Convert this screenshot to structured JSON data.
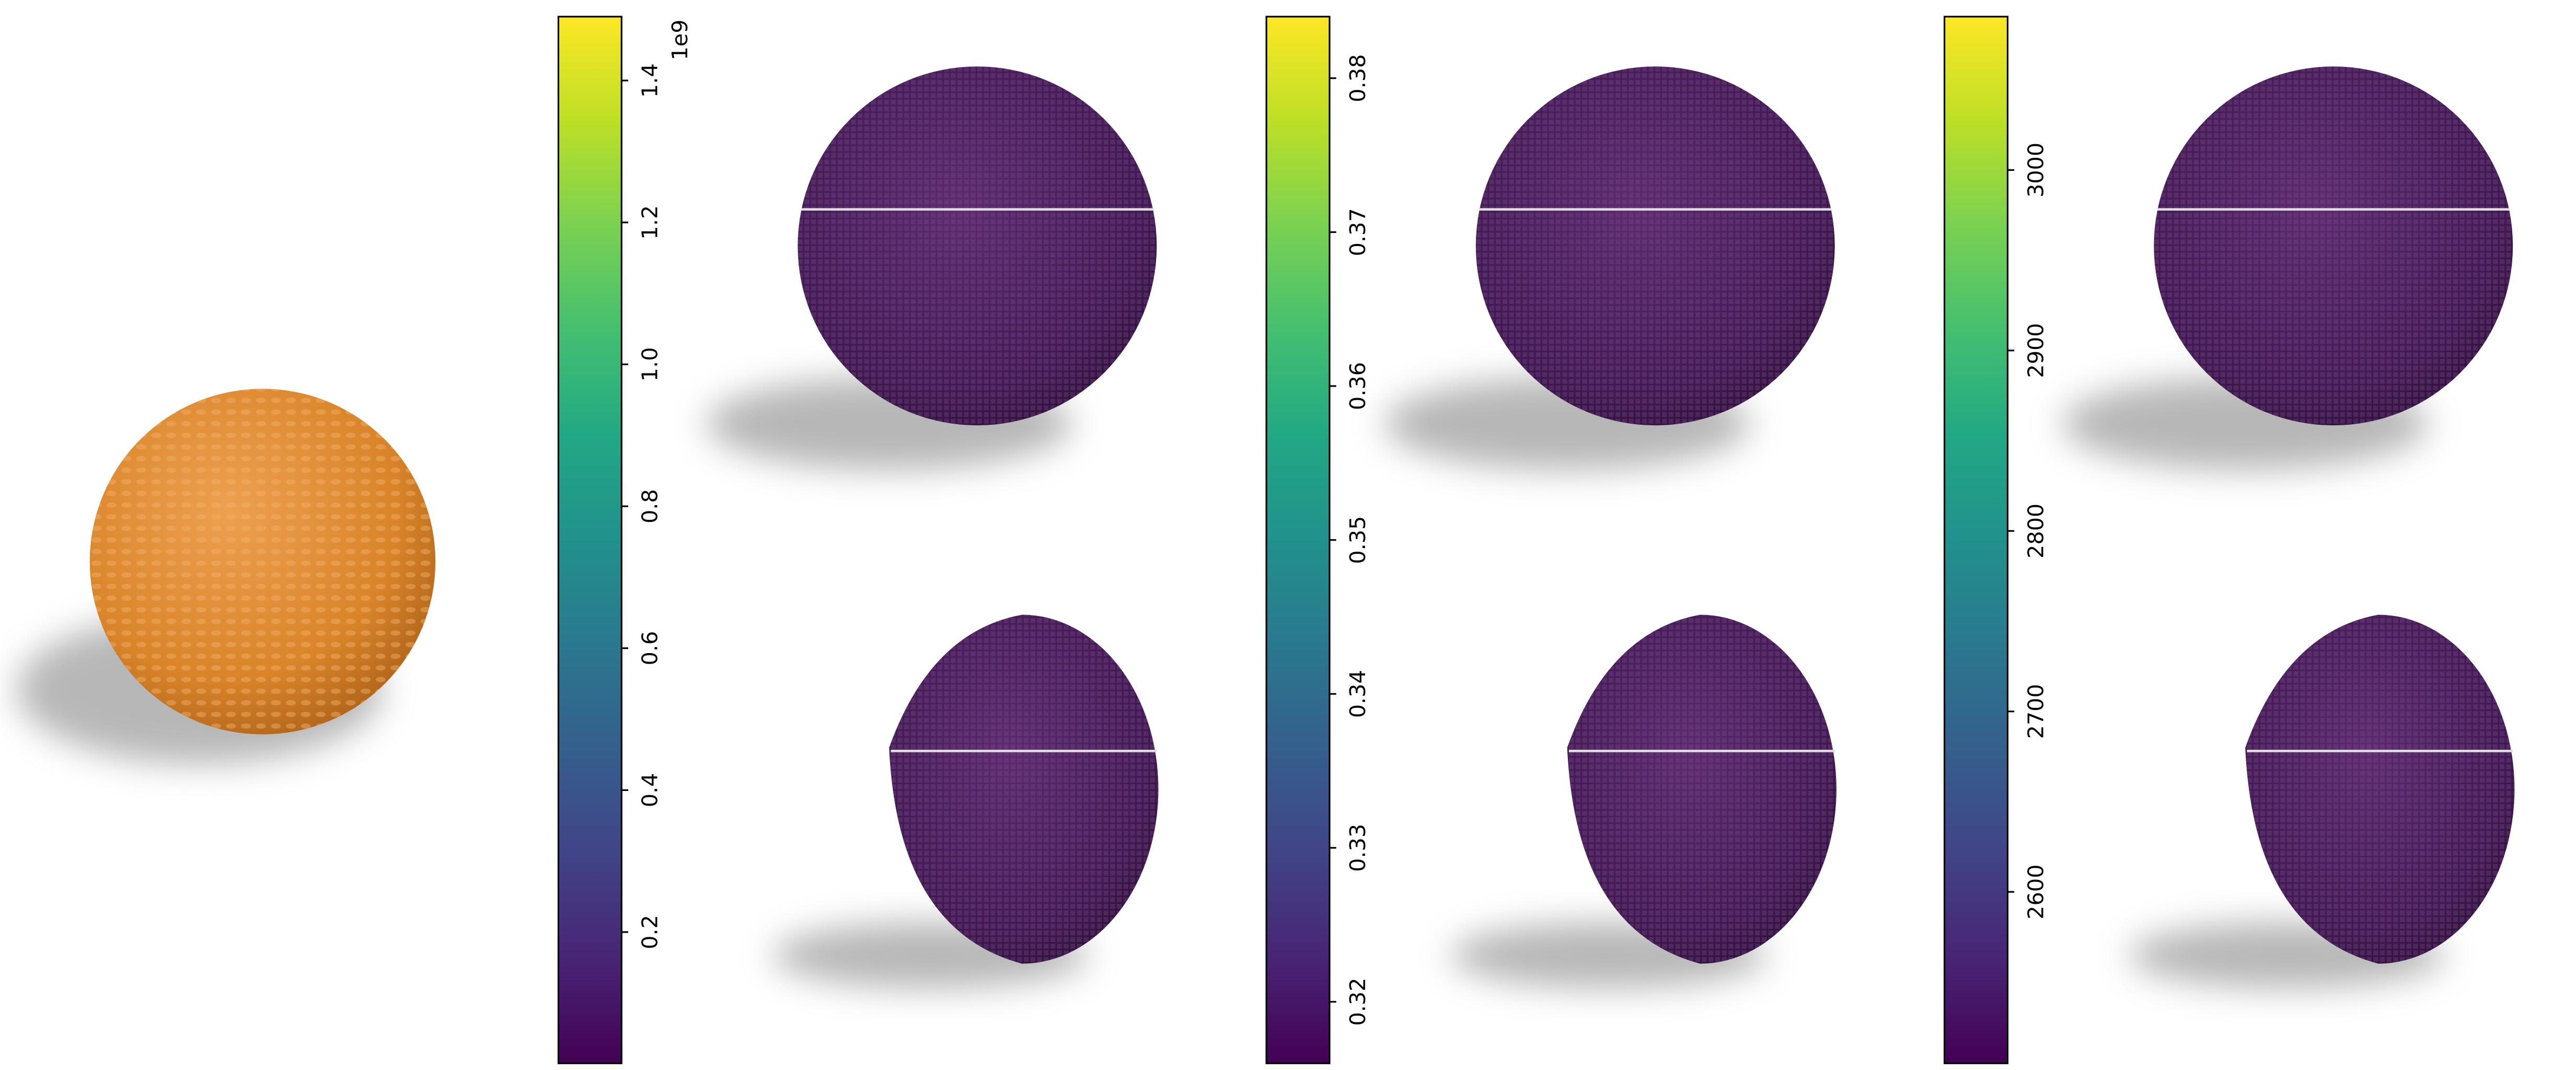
{
  "colorbars": [
    {
      "lim": [
        0.015,
        1.49
      ],
      "ticks": [
        0.2,
        0.4,
        0.6,
        0.8,
        {
          "value": 1,
          "label": "1.0"
        },
        1.2,
        1.4
      ],
      "offset_label": "1e9"
    },
    {
      "lim": [
        0.316,
        0.384
      ],
      "ticks": [
        0.32,
        0.33,
        0.34,
        0.35,
        0.36,
        0.37,
        0.38
      ]
    },
    {
      "lim": [
        2505,
        3085
      ],
      "ticks": [
        2600,
        2700,
        2800,
        2900,
        3000
      ]
    }
  ]
}
